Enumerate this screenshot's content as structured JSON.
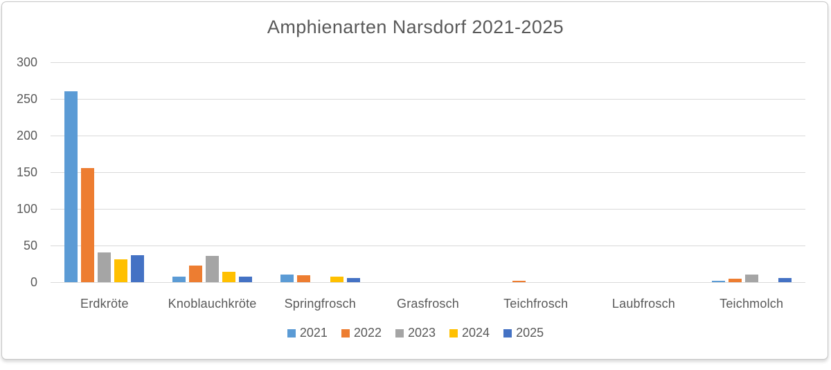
{
  "chart_data": {
    "type": "bar",
    "title": "Amphienarten Narsdorf 2021-2025",
    "categories": [
      "Erdkröte",
      "Knoblauchkröte",
      "Springfrosch",
      "Grasfrosch",
      "Teichfrosch",
      "Laubfrosch",
      "Teichmolch"
    ],
    "series": [
      {
        "name": "2021",
        "color": "#5B9BD5",
        "values": [
          260,
          8,
          10,
          0,
          0,
          0,
          2
        ]
      },
      {
        "name": "2022",
        "color": "#ED7D31",
        "values": [
          156,
          23,
          9,
          0,
          2,
          0,
          5
        ]
      },
      {
        "name": "2023",
        "color": "#A5A5A5",
        "values": [
          41,
          36,
          0,
          0,
          0,
          0,
          10
        ]
      },
      {
        "name": "2024",
        "color": "#FFC000",
        "values": [
          31,
          14,
          8,
          0,
          0,
          0,
          0
        ]
      },
      {
        "name": "2025",
        "color": "#4472C4",
        "values": [
          37,
          8,
          6,
          0,
          0,
          0,
          6
        ]
      }
    ],
    "xlabel": "",
    "ylabel": "",
    "ylim": [
      0,
      300
    ],
    "yticks": [
      0,
      50,
      100,
      150,
      200,
      250,
      300
    ],
    "grid": true,
    "legend_position": "bottom"
  },
  "colors": {
    "text": "#595959",
    "gridline": "#D9D9D9",
    "panel_border": "#C6C6C6",
    "background": "#FFFFFF"
  }
}
